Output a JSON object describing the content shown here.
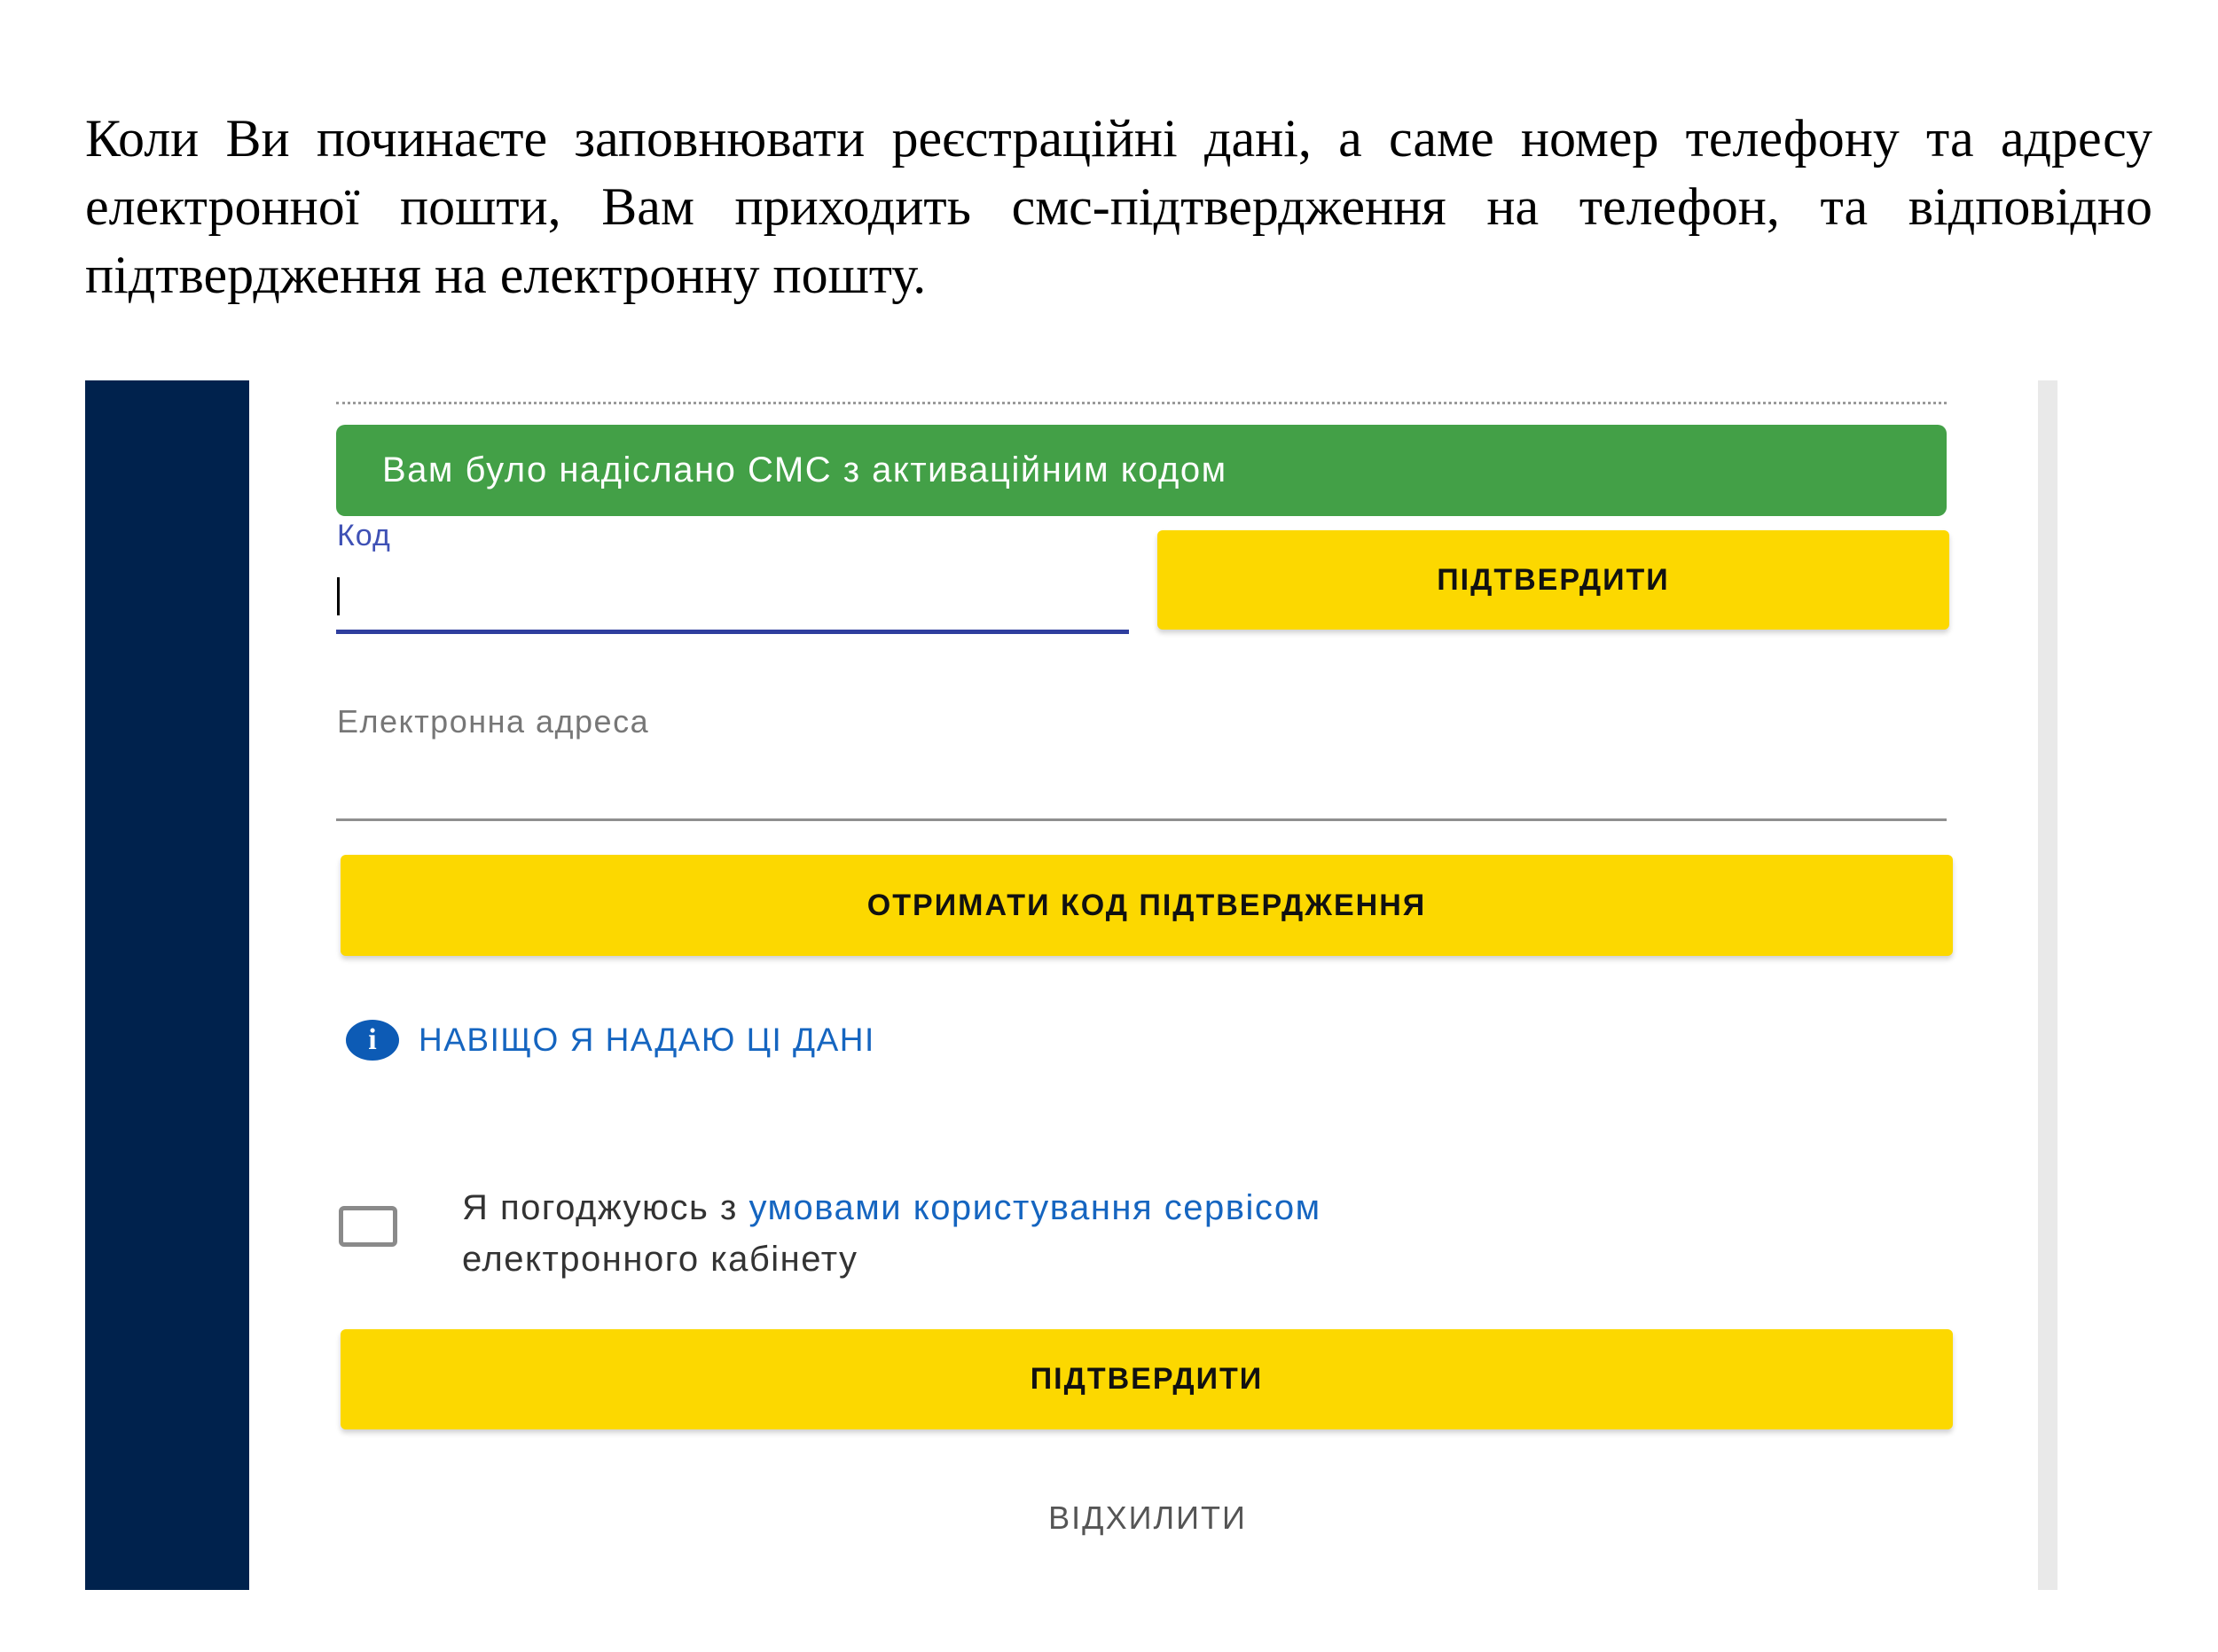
{
  "intro_text": "Коли Ви починаєте заповнювати реєстраційні дані, а саме номер телефону та адресу електронної пошти, Вам приходить смс-підтвердження на телефон, та відповідно підтвердження на електронну пошту.",
  "form": {
    "sms_banner": "Вам було надіслано СМС з активаційним кодом",
    "code_label": "Код",
    "code_value": "",
    "confirm_code_button": "ПІДТВЕРДИТИ",
    "email_label": "Електронна адреса",
    "get_code_button": "ОТРИМАТИ КОД ПІДТВЕРДЖЕННЯ",
    "info_link": "НАВІЩО Я НАДАЮ ЦІ ДАНІ",
    "agree_prefix": "Я погоджуюсь з ",
    "agree_link": "умовами користування сервісом",
    "agree_suffix": "електронного кабінету",
    "agree_checked": false,
    "confirm_button": "ПІДТВЕРДИТИ",
    "decline_button": "ВІДХИЛИТИ"
  },
  "colors": {
    "sidebar": "#00224d",
    "banner": "#43a047",
    "button": "#fcd800",
    "link": "#1565c0",
    "input_focus": "#2f3e9e"
  },
  "icons": {
    "info": "info-circle-icon"
  }
}
